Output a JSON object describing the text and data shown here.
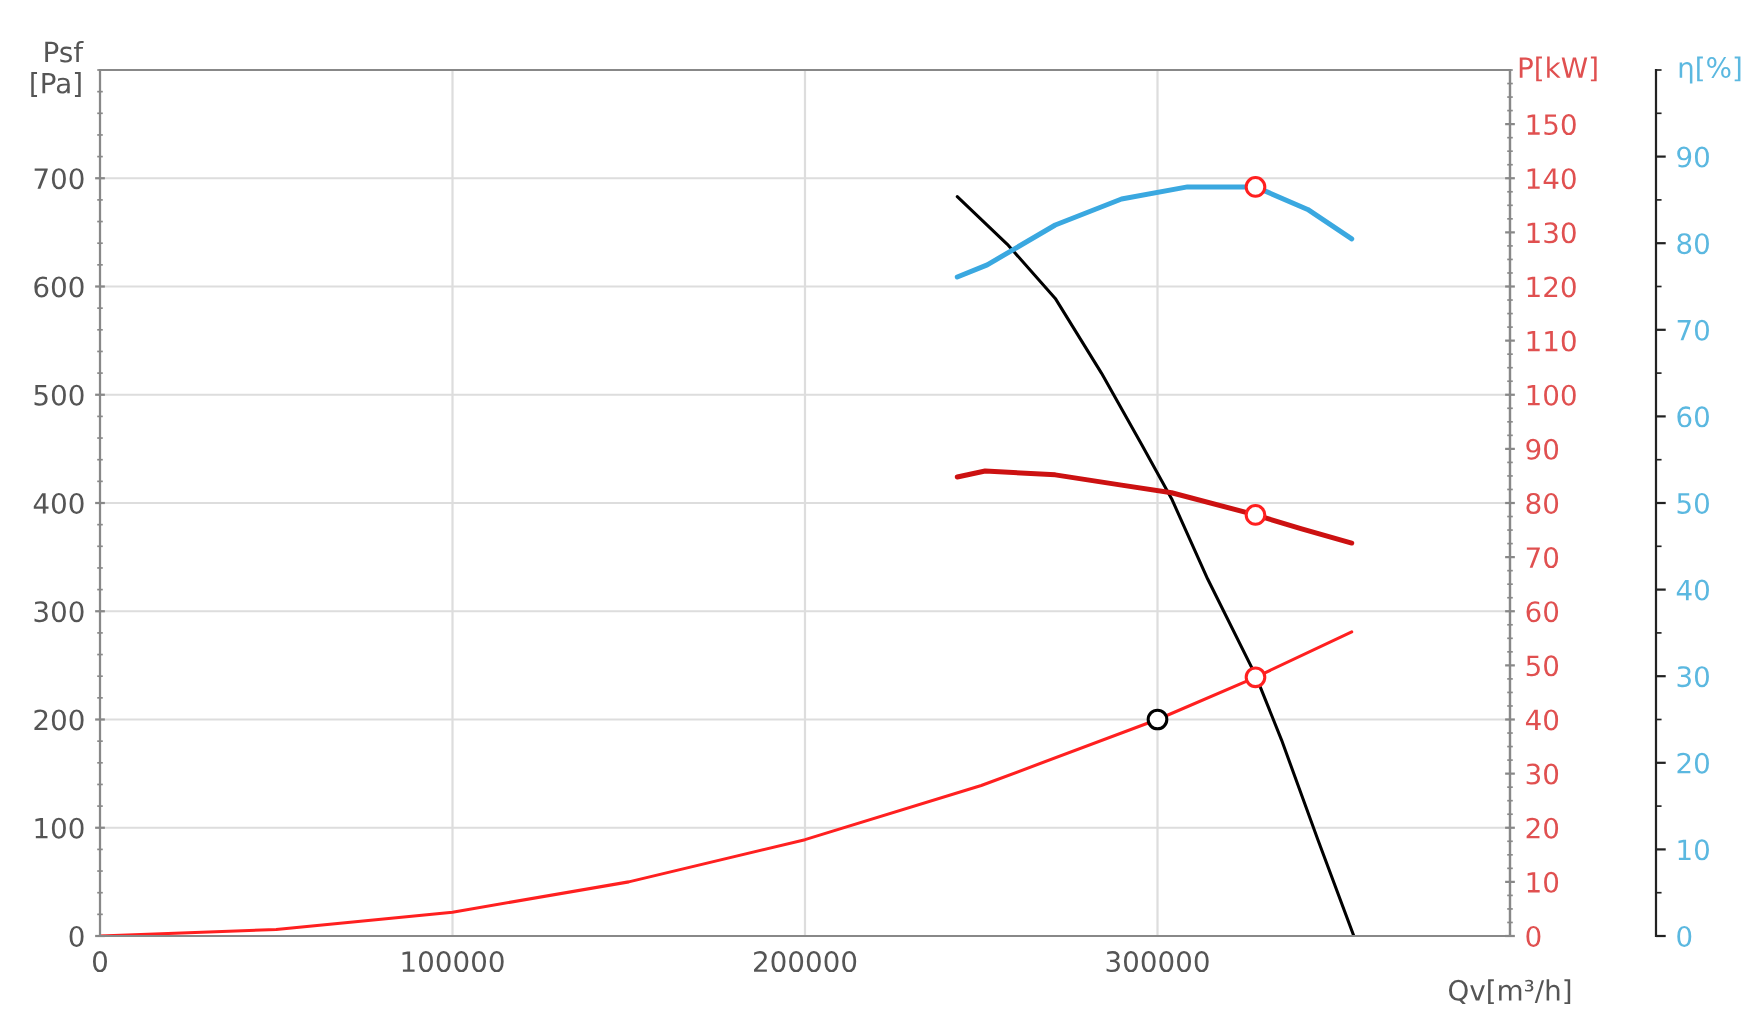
{
  "chart_data": {
    "type": "line",
    "xlabel": "Qv[m³/h]",
    "ylabel": "Psf\n[Pa]",
    "y2label": "P[kW]",
    "y3label": "η[%]",
    "xlim": [
      0,
      400000
    ],
    "xticks": [
      0,
      100000,
      200000,
      300000
    ],
    "ylim": [
      0,
      800
    ],
    "yticks": [
      0,
      100,
      200,
      300,
      400,
      500,
      600,
      700
    ],
    "y2lim": [
      0,
      160
    ],
    "y2ticks": [
      0,
      10,
      20,
      30,
      40,
      50,
      60,
      70,
      80,
      90,
      100,
      110,
      120,
      130,
      140,
      150
    ],
    "y3lim": [
      0,
      100
    ],
    "y3ticks": [
      0,
      10,
      20,
      30,
      40,
      50,
      60,
      70,
      80,
      90
    ],
    "grid": true,
    "legend": false,
    "series": [
      {
        "color": "#cc1111",
        "axis": "y2",
        "x": [
          243200,
          251100,
          271000,
          289800,
          304000,
          327800,
          340900,
          355100
        ],
        "values": [
          84.8,
          85.9,
          85.2,
          83.3,
          81.9,
          77.8,
          75.2,
          72.6
        ]
      },
      {
        "color": "#3aa8e0",
        "axis": "y3",
        "x": [
          243200,
          251700,
          271000,
          289800,
          308500,
          327800,
          342600,
          355100
        ],
        "values": [
          76.1,
          77.5,
          82.1,
          85.1,
          86.5,
          86.5,
          83.9,
          80.5
        ]
      },
      {
        "color": "#ff2020",
        "x": [
          0,
          50000,
          100000,
          150000,
          200000,
          250000,
          300000,
          327800,
          355100
        ],
        "values": [
          0,
          6,
          22,
          50,
          89,
          139,
          200,
          239,
          281
        ]
      },
      {
        "color": "#000000",
        "x": [
          243200,
          257400,
          271000,
          284100,
          295500,
          304000,
          314200,
          327800,
          335200,
          345500,
          355700
        ],
        "values": [
          683,
          639,
          589,
          520,
          454,
          404,
          330,
          241,
          181,
          89,
          0
        ]
      },
      {
        "type": "scatter",
        "color": "#000000",
        "marker": "circle",
        "x": [
          300000
        ],
        "values": [
          200
        ]
      },
      {
        "type": "scatter",
        "color": "#ff2020",
        "marker": "circle",
        "x": [
          327800
        ],
        "values": [
          239
        ]
      },
      {
        "type": "scatter",
        "color": "#ff2020",
        "marker": "circle",
        "axis": "y2",
        "x": [
          327800
        ],
        "values": [
          77.8
        ]
      },
      {
        "type": "scatter",
        "color": "#ff2020",
        "marker": "circle",
        "axis": "y3",
        "x": [
          327800
        ],
        "values": [
          86.5
        ]
      }
    ]
  }
}
